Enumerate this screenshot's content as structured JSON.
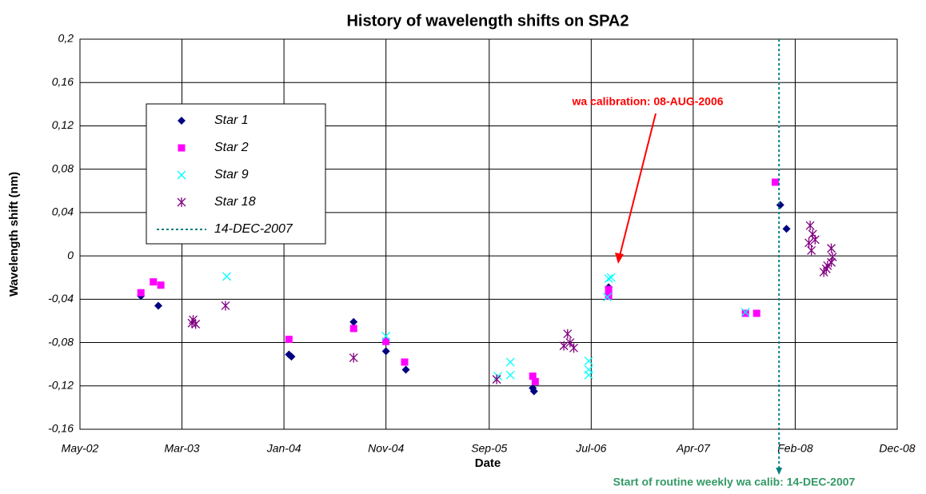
{
  "chart_data": {
    "type": "scatter",
    "title": "History of wavelength shifts on SPA2",
    "x_label": "Date",
    "y_label": "Wavelength shift (nm)",
    "xlim": [
      2002.33,
      2008.9
    ],
    "xticks": [
      {
        "value": 2002.33,
        "label": "May-02"
      },
      {
        "value": 2003.15,
        "label": "Mar-03"
      },
      {
        "value": 2003.97,
        "label": "Jan-04"
      },
      {
        "value": 2004.79,
        "label": "Nov-04"
      },
      {
        "value": 2005.62,
        "label": "Sep-05"
      },
      {
        "value": 2006.44,
        "label": "Jul-06"
      },
      {
        "value": 2007.26,
        "label": "Apr-07"
      },
      {
        "value": 2008.08,
        "label": "Feb-08"
      },
      {
        "value": 2008.9,
        "label": "Dec-08"
      }
    ],
    "ylim": [
      -0.16,
      0.2
    ],
    "yticks": [
      {
        "value": -0.16,
        "label": "-0,16"
      },
      {
        "value": -0.12,
        "label": "-0,12"
      },
      {
        "value": -0.08,
        "label": "-0,08"
      },
      {
        "value": -0.04,
        "label": "-0,04"
      },
      0,
      {
        "value": 0.04,
        "label": "0,04"
      },
      {
        "value": 0.08,
        "label": "0,08"
      },
      {
        "value": 0.12,
        "label": "0,12"
      },
      {
        "value": 0.16,
        "label": "0,16"
      },
      {
        "value": 0.2,
        "label": "0,2"
      }
    ],
    "grid": true,
    "series": [
      {
        "name": "Star 1",
        "color": "#000080",
        "marker": "diamond",
        "x": [
          2002.82,
          2002.96,
          2004.01,
          2004.03,
          2004.53,
          2004.79,
          2004.95,
          2005.97,
          2005.98,
          2006.58,
          2007.96,
          2008.01
        ],
        "values": [
          -0.037,
          -0.046,
          -0.091,
          -0.093,
          -0.061,
          -0.088,
          -0.105,
          -0.122,
          -0.125,
          -0.029,
          0.047,
          0.025
        ]
      },
      {
        "name": "Star 2",
        "color": "#ff00ff",
        "marker": "square",
        "x": [
          2002.82,
          2002.92,
          2002.98,
          2004.01,
          2004.53,
          2004.79,
          2004.94,
          2005.97,
          2005.99,
          2006.58,
          2006.58,
          2007.68,
          2007.77,
          2007.92
        ],
        "values": [
          -0.034,
          -0.024,
          -0.027,
          -0.077,
          -0.067,
          -0.079,
          -0.098,
          -0.111,
          -0.116,
          -0.031,
          -0.037,
          -0.053,
          -0.053,
          0.068
        ]
      },
      {
        "name": "Star 9",
        "color": "#00ffff",
        "marker": "x",
        "x": [
          2003.51,
          2004.79,
          2005.69,
          2005.79,
          2005.79,
          2006.42,
          2006.42,
          2006.42,
          2006.58,
          2006.6,
          2006.57,
          2007.68
        ],
        "values": [
          -0.019,
          -0.074,
          -0.111,
          -0.098,
          -0.11,
          -0.097,
          -0.105,
          -0.11,
          -0.021,
          -0.02,
          -0.038,
          -0.052
        ]
      },
      {
        "name": "Star 18",
        "color": "#800080",
        "marker": "asterisk",
        "x": [
          2003.23,
          2003.24,
          2003.26,
          2003.5,
          2004.53,
          2005.68,
          2006.22,
          2006.25,
          2006.27,
          2006.3,
          2008.19,
          2008.2,
          2008.21,
          2008.22,
          2008.24,
          2008.31,
          2008.33,
          2008.34,
          2008.37,
          2008.37,
          2008.38
        ],
        "values": [
          -0.062,
          -0.059,
          -0.063,
          -0.046,
          -0.094,
          -0.114,
          -0.083,
          -0.072,
          -0.08,
          -0.085,
          0.012,
          0.028,
          0.005,
          0.02,
          0.015,
          -0.015,
          -0.012,
          -0.009,
          0.007,
          -0.006,
          -0.001
        ]
      }
    ],
    "vlines": [
      {
        "name": "14-DEC-2007",
        "x": 2007.95,
        "color": "#008080"
      }
    ],
    "annotations": [
      {
        "text": "wa calibration: 08-AUG-2006",
        "color": "#ff0000"
      },
      {
        "text": "Start of routine weekly wa calib: 14-DEC-2007",
        "color": "#339966"
      }
    ]
  }
}
